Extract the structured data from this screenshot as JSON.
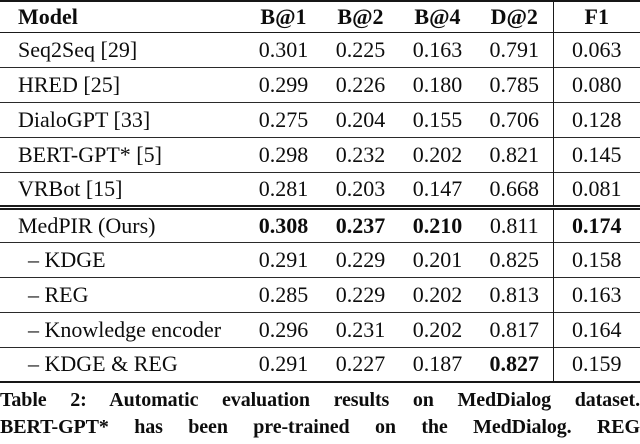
{
  "header": {
    "model": "Model",
    "cols": [
      "B@1",
      "B@2",
      "B@4",
      "D@2",
      "F1"
    ]
  },
  "rows": [
    {
      "model": "Seq2Seq [29]",
      "values": [
        "0.301",
        "0.225",
        "0.163",
        "0.791",
        "0.063"
      ]
    },
    {
      "model": "HRED [25]",
      "values": [
        "0.299",
        "0.226",
        "0.180",
        "0.785",
        "0.080"
      ]
    },
    {
      "model": "DialoGPT [33]",
      "values": [
        "0.275",
        "0.204",
        "0.155",
        "0.706",
        "0.128"
      ]
    },
    {
      "model": "BERT-GPT* [5]",
      "values": [
        "0.298",
        "0.232",
        "0.202",
        "0.821",
        "0.145"
      ]
    },
    {
      "model": "VRBot [15]",
      "values": [
        "0.281",
        "0.203",
        "0.147",
        "0.668",
        "0.081"
      ]
    },
    {
      "model": "MedPIR (Ours)",
      "values": [
        "0.308",
        "0.237",
        "0.210",
        "0.811",
        "0.174"
      ],
      "bold": [
        true,
        true,
        true,
        false,
        true
      ]
    },
    {
      "model": "– KDGE",
      "indent": true,
      "values": [
        "0.291",
        "0.229",
        "0.201",
        "0.825",
        "0.158"
      ]
    },
    {
      "model": "– REG",
      "indent": true,
      "values": [
        "0.285",
        "0.229",
        "0.202",
        "0.813",
        "0.163"
      ]
    },
    {
      "model": "– Knowledge encoder",
      "indent": true,
      "values": [
        "0.296",
        "0.231",
        "0.202",
        "0.817",
        "0.164"
      ]
    },
    {
      "model": "– KDGE & REG",
      "indent": true,
      "values": [
        "0.291",
        "0.227",
        "0.187",
        "0.827",
        "0.159"
      ],
      "bold": [
        false,
        false,
        false,
        true,
        false
      ]
    }
  ],
  "caption": {
    "line1": "Table 2: Automatic evaluation results on MedDialog dataset.",
    "line2": "BERT-GPT* has been pre-trained on the MedDialog. REG"
  }
}
